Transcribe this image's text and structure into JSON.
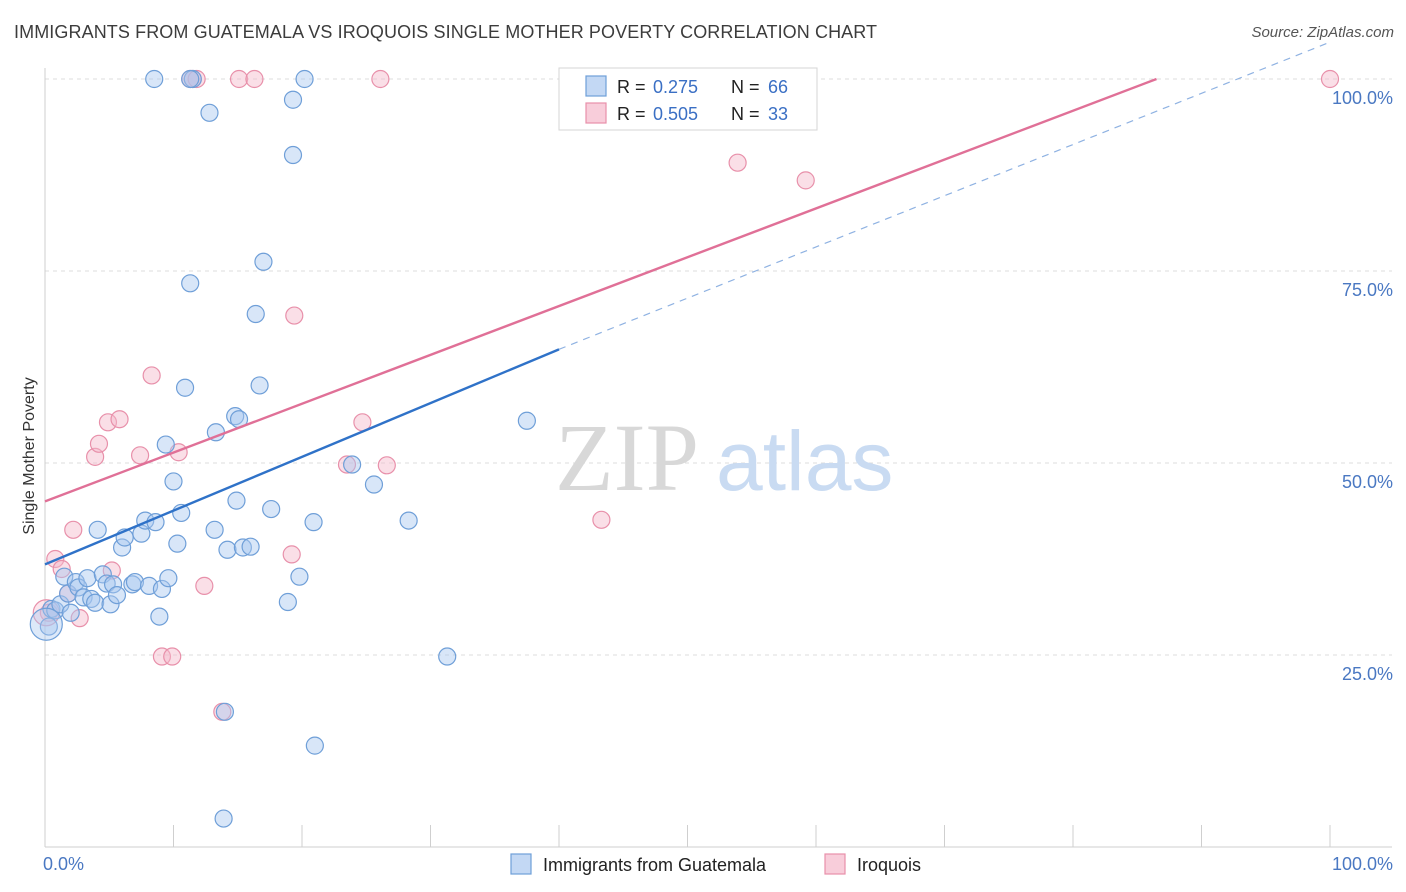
{
  "title": "IMMIGRANTS FROM GUATEMALA VS IROQUOIS SINGLE MOTHER POVERTY CORRELATION CHART",
  "source": "Source: ZipAtlas.com",
  "watermark": {
    "zip": "ZIP",
    "atlas": "atlas"
  },
  "colors": {
    "blue_fill": "#a9c8f0",
    "blue_stroke": "#6f9fd8",
    "blue_line": "#2f72c8",
    "pink_fill": "#f5b8ca",
    "pink_stroke": "#e890aa",
    "pink_line": "#e07097",
    "grid": "#dcdcdc",
    "tick_text": "#4a78c2"
  },
  "stats_box": {
    "rows": [
      {
        "r_label": "R =",
        "r_value": "0.275",
        "n_label": "N =",
        "n_value": "66"
      },
      {
        "r_label": "R =",
        "r_value": "0.505",
        "n_label": "N =",
        "n_value": "33"
      }
    ]
  },
  "chart_data": {
    "type": "scatter",
    "title": "IMMIGRANTS FROM GUATEMALA VS IROQUOIS SINGLE MOTHER POVERTY CORRELATION CHART",
    "xlabel": "",
    "ylabel": "Single Mother Poverty",
    "xlim": [
      0,
      100
    ],
    "ylim": [
      0,
      100
    ],
    "x_tick_labels": [
      "0.0%",
      "100.0%"
    ],
    "y_ticks": [
      25,
      50,
      75,
      100
    ],
    "y_tick_labels": [
      "25.0%",
      "50.0%",
      "75.0%",
      "100.0%"
    ],
    "grid": true,
    "legend_position": "bottom-center",
    "series": [
      {
        "name": "Immigrants from Guatemala",
        "r": 0.275,
        "n": 66,
        "trend": {
          "x0": 0,
          "y0": 36.8,
          "x1": 40,
          "y1": 64.8,
          "dash_to_x": 100,
          "dash_to_y": 104.8
        },
        "points": [
          [
            0.3,
            28.7
          ],
          [
            0.5,
            31.0
          ],
          [
            0.8,
            30.8
          ],
          [
            1.2,
            31.6
          ],
          [
            1.5,
            35.2
          ],
          [
            1.8,
            33.0
          ],
          [
            2.0,
            30.5
          ],
          [
            2.4,
            34.5
          ],
          [
            2.6,
            33.8
          ],
          [
            3.0,
            32.5
          ],
          [
            3.3,
            35.0
          ],
          [
            3.6,
            32.3
          ],
          [
            3.9,
            31.8
          ],
          [
            4.1,
            41.3
          ],
          [
            4.5,
            35.5
          ],
          [
            4.8,
            34.3
          ],
          [
            5.1,
            31.6
          ],
          [
            5.3,
            34.2
          ],
          [
            5.6,
            32.8
          ],
          [
            6.0,
            39.0
          ],
          [
            6.2,
            40.3
          ],
          [
            6.8,
            34.2
          ],
          [
            7.0,
            34.5
          ],
          [
            7.5,
            40.8
          ],
          [
            7.8,
            42.5
          ],
          [
            8.1,
            34.0
          ],
          [
            8.5,
            100.0
          ],
          [
            8.6,
            42.3
          ],
          [
            8.9,
            30.0
          ],
          [
            9.1,
            33.6
          ],
          [
            9.4,
            52.4
          ],
          [
            9.6,
            35.0
          ],
          [
            10.0,
            47.6
          ],
          [
            10.3,
            39.5
          ],
          [
            10.6,
            43.5
          ],
          [
            10.9,
            59.8
          ],
          [
            11.3,
            73.4
          ],
          [
            11.5,
            100.0
          ],
          [
            12.8,
            95.6
          ],
          [
            13.2,
            41.3
          ],
          [
            13.3,
            54.0
          ],
          [
            14.2,
            38.7
          ],
          [
            14.8,
            56.1
          ],
          [
            14.9,
            45.1
          ],
          [
            15.1,
            55.7
          ],
          [
            15.4,
            39.0
          ],
          [
            16.0,
            39.1
          ],
          [
            16.4,
            69.4
          ],
          [
            16.7,
            60.1
          ],
          [
            17.0,
            76.2
          ],
          [
            17.6,
            44.0
          ],
          [
            18.9,
            31.9
          ],
          [
            19.3,
            97.3
          ],
          [
            19.3,
            90.1
          ],
          [
            19.8,
            35.2
          ],
          [
            20.2,
            100.0
          ],
          [
            20.9,
            42.3
          ],
          [
            21.0,
            13.2
          ],
          [
            23.9,
            49.8
          ],
          [
            25.6,
            47.2
          ],
          [
            28.3,
            42.5
          ],
          [
            31.3,
            24.8
          ],
          [
            37.5,
            55.5
          ],
          [
            13.9,
            3.7
          ],
          [
            14.0,
            17.6
          ],
          [
            11.3,
            100.0
          ]
        ]
      },
      {
        "name": "Iroquois",
        "r": 0.505,
        "n": 33,
        "trend": {
          "x0": 0,
          "y0": 45.0,
          "x1": 86.5,
          "y1": 100.0
        },
        "points": [
          [
            0.3,
            30.5
          ],
          [
            0.8,
            37.5
          ],
          [
            1.3,
            36.2
          ],
          [
            1.8,
            33.0
          ],
          [
            2.2,
            41.3
          ],
          [
            2.7,
            29.8
          ],
          [
            3.9,
            50.8
          ],
          [
            4.2,
            52.5
          ],
          [
            4.9,
            55.3
          ],
          [
            5.2,
            36.0
          ],
          [
            5.8,
            55.7
          ],
          [
            7.4,
            51.0
          ],
          [
            8.3,
            61.4
          ],
          [
            9.1,
            24.8
          ],
          [
            9.9,
            24.8
          ],
          [
            10.4,
            51.4
          ],
          [
            11.3,
            100.0
          ],
          [
            11.5,
            100.0
          ],
          [
            11.8,
            100.0
          ],
          [
            12.4,
            34.0
          ],
          [
            13.8,
            17.6
          ],
          [
            15.1,
            100.0
          ],
          [
            16.3,
            100.0
          ],
          [
            19.2,
            38.1
          ],
          [
            19.4,
            69.2
          ],
          [
            23.5,
            49.8
          ],
          [
            24.7,
            55.3
          ],
          [
            26.1,
            100.0
          ],
          [
            26.6,
            49.7
          ],
          [
            43.3,
            42.6
          ],
          [
            53.9,
            89.1
          ],
          [
            59.2,
            86.8
          ],
          [
            100.0,
            100.0
          ]
        ]
      }
    ]
  }
}
